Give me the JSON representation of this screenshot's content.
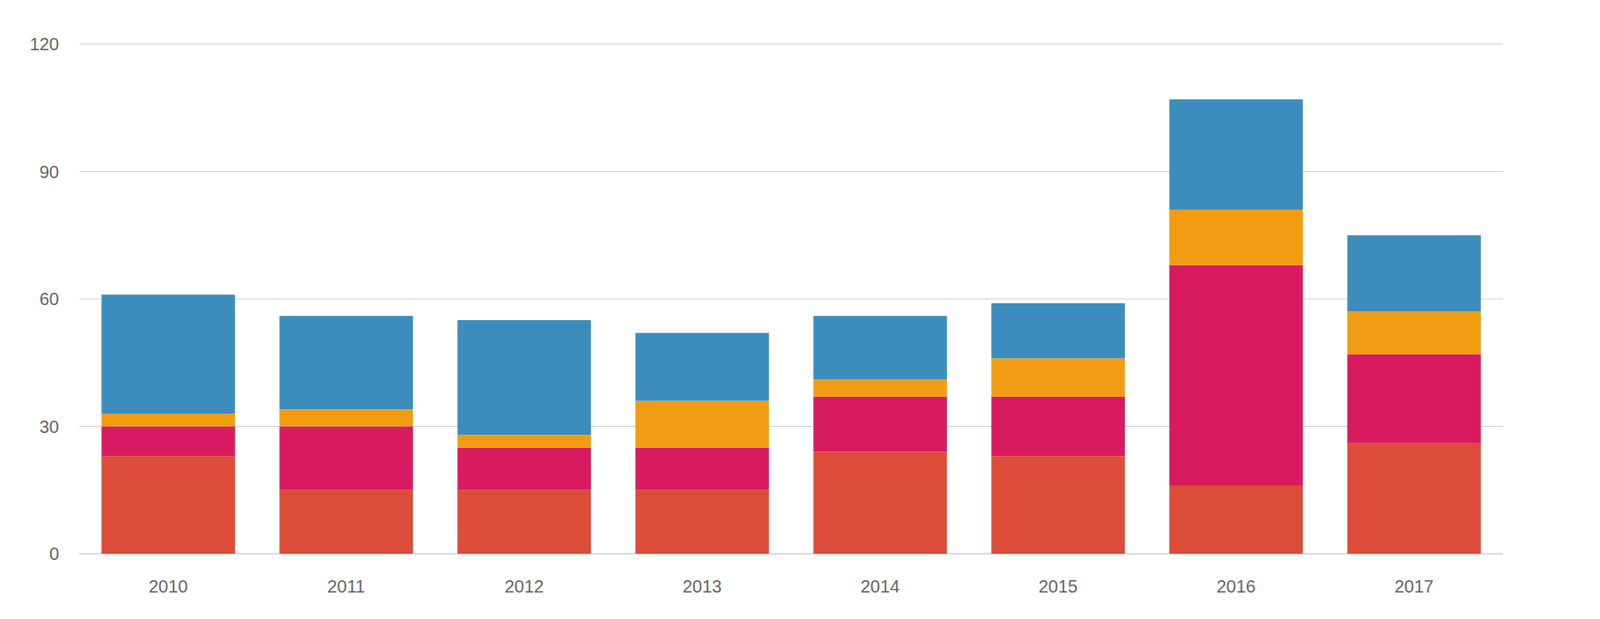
{
  "chart_data": {
    "type": "bar",
    "stacked": true,
    "grid": true,
    "categories": [
      "2010",
      "2011",
      "2012",
      "2013",
      "2014",
      "2015",
      "2016",
      "2017"
    ],
    "series": [
      {
        "color": "#dc4c38",
        "values": [
          23,
          15,
          15,
          15,
          24,
          23,
          16,
          26
        ]
      },
      {
        "color": "#d81b60",
        "values": [
          7,
          15,
          10,
          10,
          13,
          14,
          52,
          21
        ]
      },
      {
        "color": "#f29c11",
        "values": [
          3,
          4,
          3,
          11,
          4,
          9,
          13,
          10
        ]
      },
      {
        "color": "#3c8dbc",
        "values": [
          28,
          22,
          27,
          16,
          15,
          13,
          26,
          18
        ]
      }
    ],
    "ylim": [
      0,
      120
    ],
    "yticks": [
      0,
      30,
      60,
      90,
      120
    ]
  }
}
